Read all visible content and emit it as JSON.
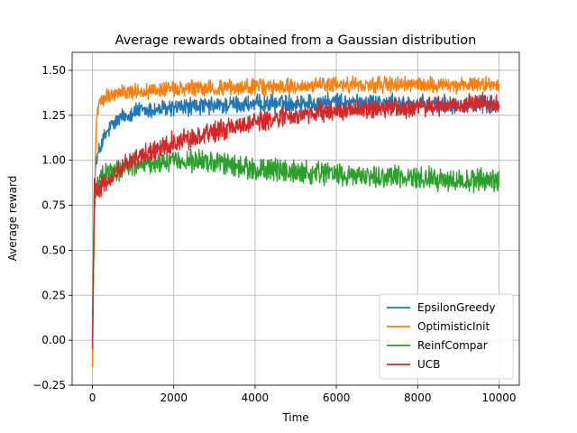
{
  "chart_data": {
    "type": "line",
    "title": "Average rewards obtained from a Gaussian distribution",
    "xlabel": "Time",
    "ylabel": "Average reward",
    "xlim": [
      -500,
      10500
    ],
    "ylim": [
      -0.25,
      1.6
    ],
    "xticks": [
      0,
      2000,
      4000,
      6000,
      8000,
      10000
    ],
    "yticks": [
      -0.25,
      0.0,
      0.25,
      0.5,
      0.75,
      1.0,
      1.25,
      1.5
    ],
    "xtick_labels": [
      "0",
      "2000",
      "4000",
      "6000",
      "8000",
      "10000"
    ],
    "ytick_labels": [
      "−0.25",
      "0.00",
      "0.25",
      "0.50",
      "0.75",
      "1.00",
      "1.25",
      "1.50"
    ],
    "grid": true,
    "legend_position": "lower-right",
    "x": [
      0,
      50,
      100,
      200,
      300,
      500,
      750,
      1000,
      1500,
      2000,
      2500,
      3000,
      3500,
      4000,
      5000,
      6000,
      7000,
      8000,
      9000,
      10000
    ],
    "series": [
      {
        "name": "EpsilonGreedy",
        "color": "#1f77b4",
        "noise": 0.04,
        "values": [
          0.0,
          0.9,
          1.0,
          1.08,
          1.13,
          1.2,
          1.24,
          1.27,
          1.28,
          1.29,
          1.3,
          1.3,
          1.31,
          1.31,
          1.32,
          1.32,
          1.32,
          1.31,
          1.31,
          1.31
        ]
      },
      {
        "name": "OptimisticInit",
        "color": "#ff7f0e",
        "noise": 0.035,
        "values": [
          -0.15,
          0.8,
          1.25,
          1.33,
          1.36,
          1.37,
          1.38,
          1.38,
          1.39,
          1.39,
          1.4,
          1.4,
          1.4,
          1.41,
          1.41,
          1.42,
          1.42,
          1.42,
          1.42,
          1.43
        ]
      },
      {
        "name": "ReinfCompar",
        "color": "#2ca02c",
        "noise": 0.05,
        "values": [
          0.05,
          0.75,
          0.85,
          0.9,
          0.92,
          0.93,
          0.95,
          0.97,
          0.99,
          1.0,
          1.0,
          0.99,
          0.97,
          0.95,
          0.93,
          0.92,
          0.91,
          0.9,
          0.89,
          0.89
        ]
      },
      {
        "name": "UCB",
        "color": "#d62728",
        "noise": 0.045,
        "values": [
          -0.05,
          0.9,
          0.84,
          0.85,
          0.87,
          0.92,
          0.97,
          1.0,
          1.06,
          1.1,
          1.13,
          1.16,
          1.19,
          1.21,
          1.25,
          1.27,
          1.29,
          1.3,
          1.31,
          1.32
        ]
      }
    ]
  }
}
